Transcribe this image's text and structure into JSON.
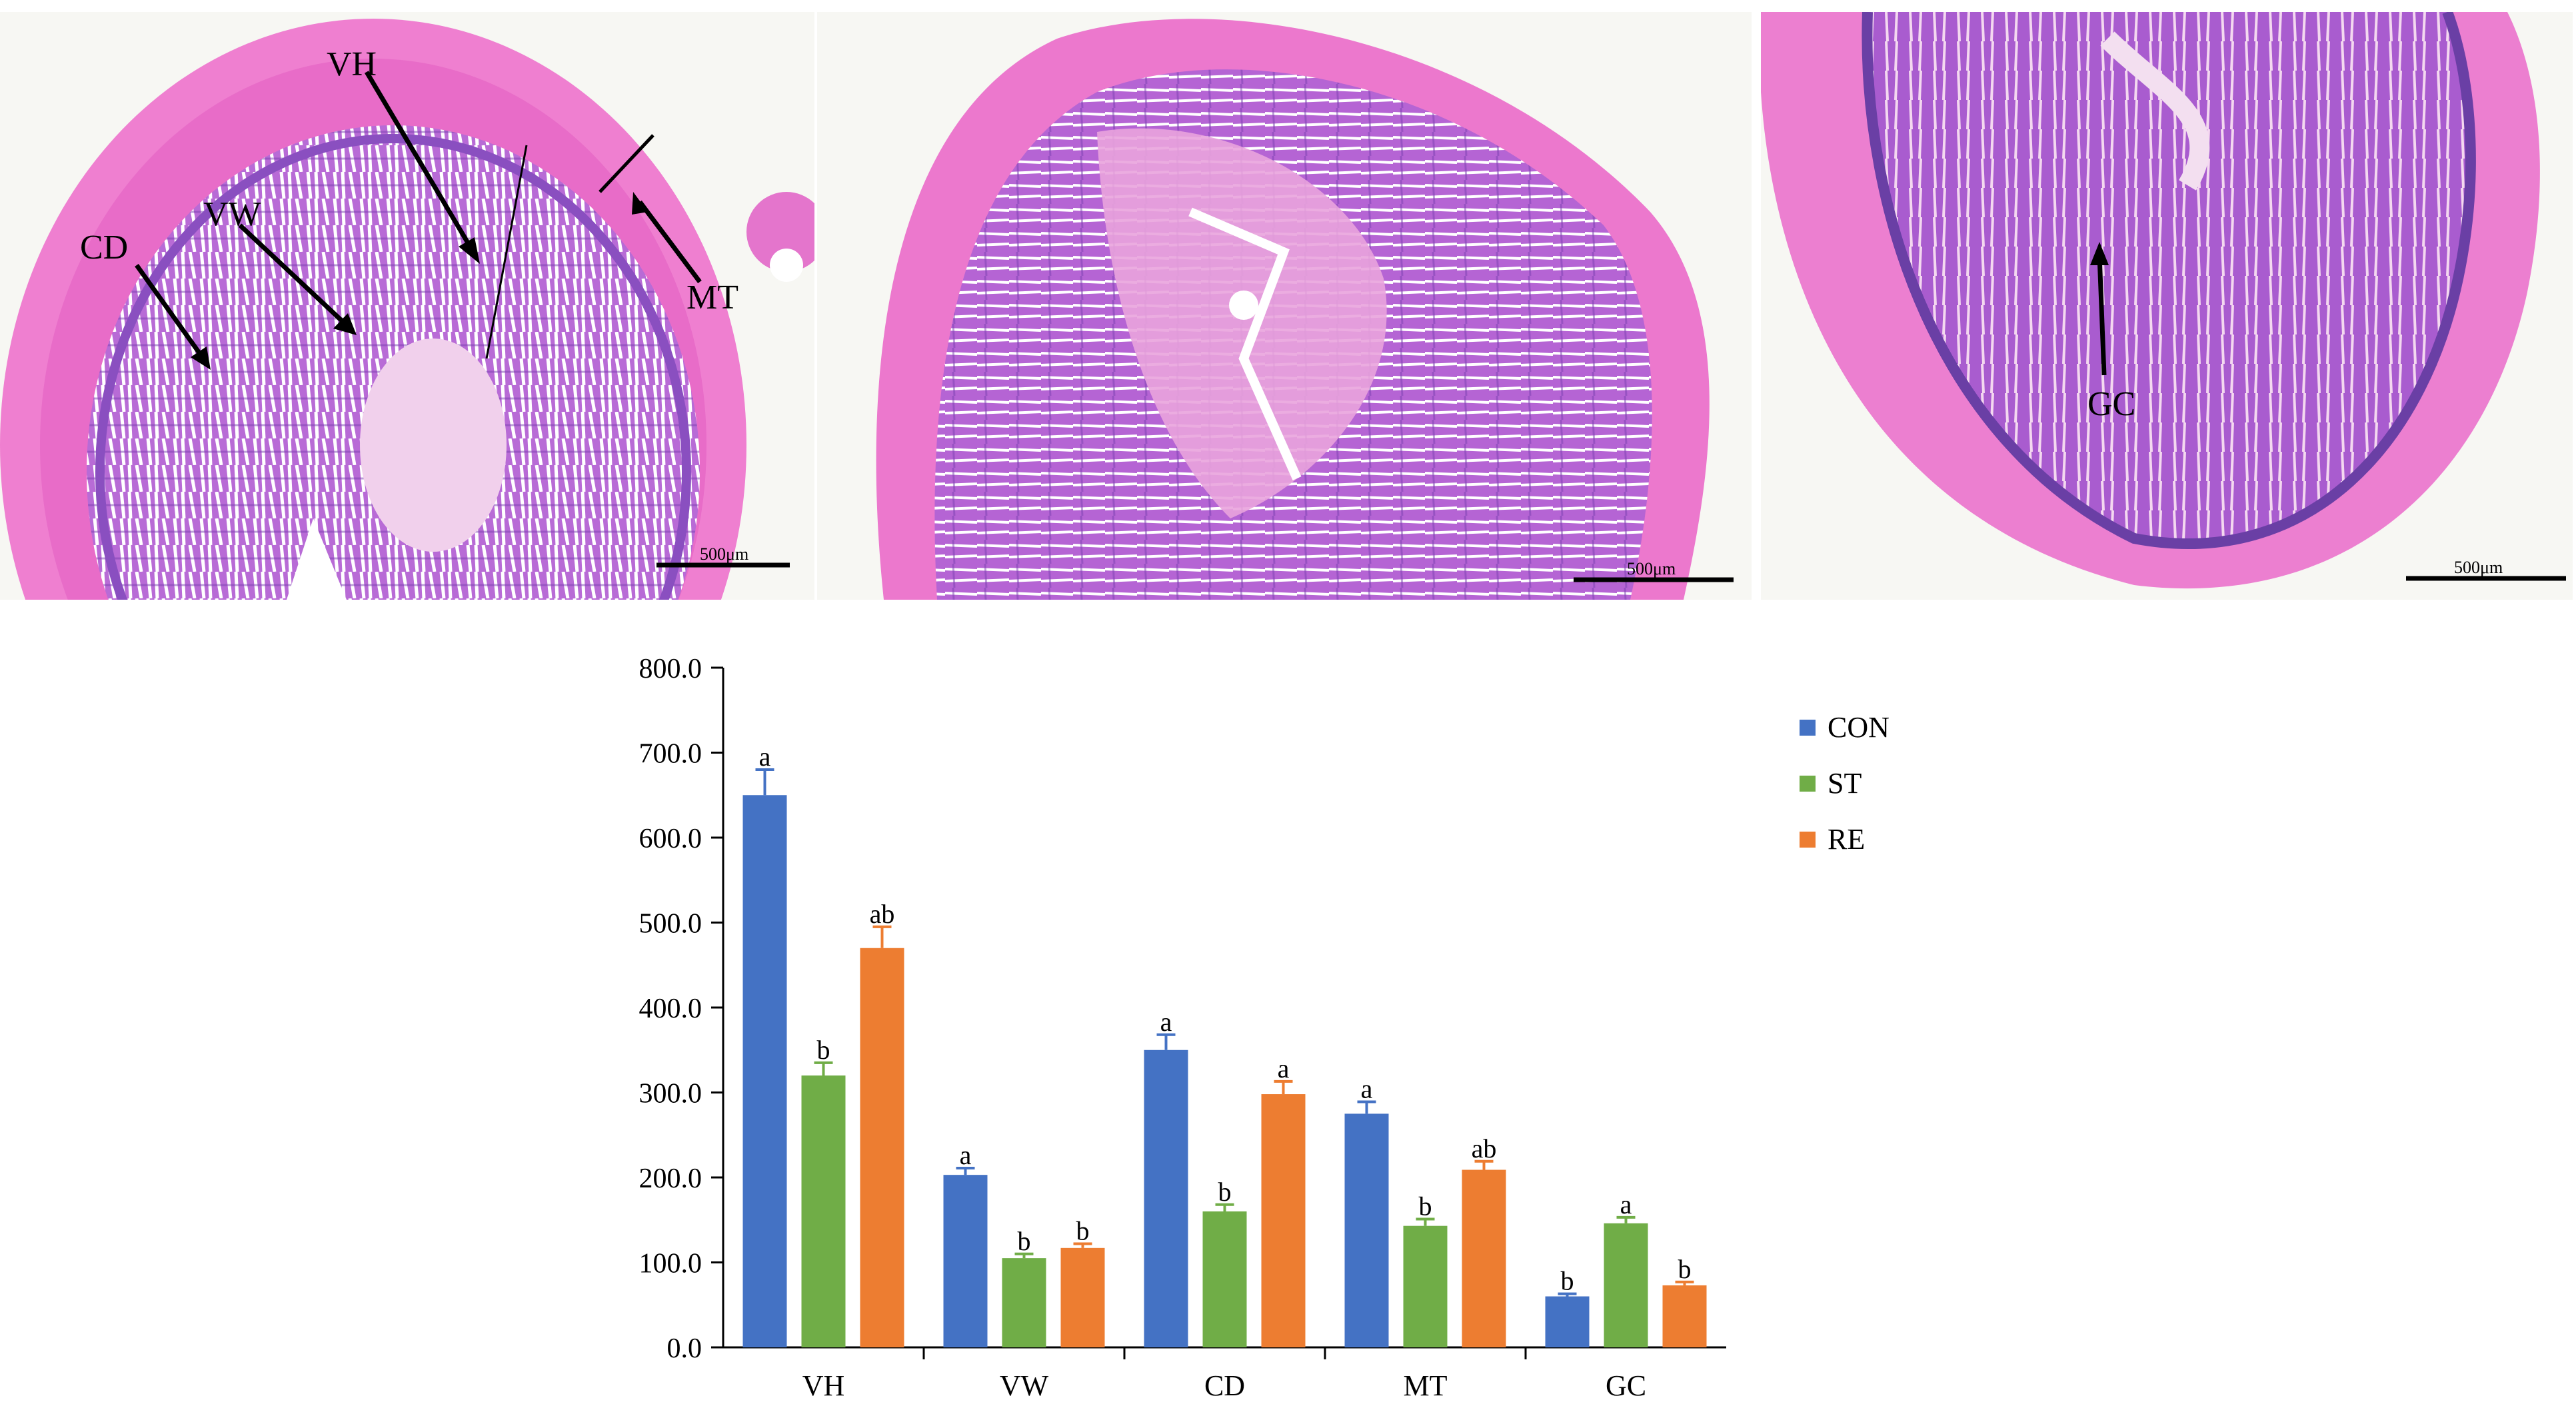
{
  "panels": [
    {
      "scale_bar": "500μm",
      "annotations": [
        "VH",
        "VW",
        "CD",
        "MT"
      ]
    },
    {
      "scale_bar": "500μm",
      "annotations": []
    },
    {
      "scale_bar": "500μm",
      "annotations": [
        "GC"
      ]
    }
  ],
  "colors": {
    "CON": "#4472C4",
    "ST": "#70AD47",
    "RE": "#ED7D31",
    "tissue_pink": "#e96ec9",
    "crypt_purple": "#8a4fc0"
  },
  "chart_data": {
    "type": "bar",
    "categories": [
      "VH",
      "VW",
      "CD",
      "MT",
      "GC"
    ],
    "series": [
      {
        "name": "CON",
        "values": [
          650,
          203,
          350,
          275,
          60
        ],
        "errors": [
          30,
          8,
          18,
          14,
          3
        ],
        "letters": [
          "a",
          "a",
          "a",
          "a",
          "b"
        ]
      },
      {
        "name": "ST",
        "values": [
          320,
          105,
          160,
          143,
          146
        ],
        "errors": [
          15,
          5,
          8,
          8,
          7
        ],
        "letters": [
          "b",
          "b",
          "b",
          "b",
          "a"
        ]
      },
      {
        "name": "RE",
        "values": [
          470,
          117,
          298,
          209,
          73
        ],
        "errors": [
          25,
          5,
          15,
          10,
          4
        ],
        "letters": [
          "ab",
          "b",
          "a",
          "ab",
          "b"
        ]
      }
    ],
    "ylim": [
      0,
      800
    ],
    "yticks": [
      "0.0",
      "100.0",
      "200.0",
      "300.0",
      "400.0",
      "500.0",
      "600.0",
      "700.0",
      "800.0"
    ],
    "legend_position": "right"
  }
}
